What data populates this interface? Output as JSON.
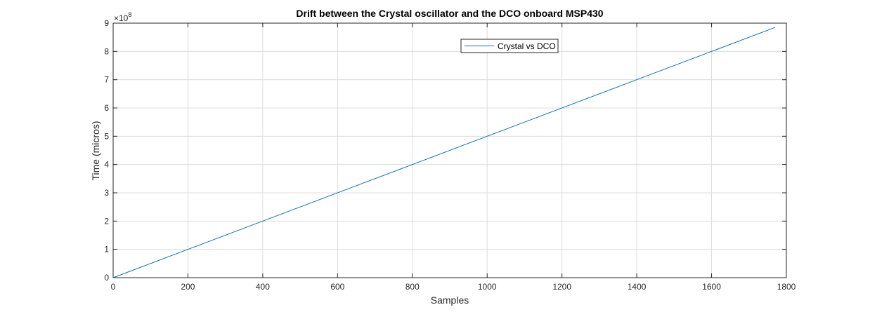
{
  "chart_data": {
    "type": "line",
    "title": "Drift between the Crystal oscillator and the DCO onboard MSP430",
    "xlabel": "Samples",
    "ylabel": "Time (micros)",
    "xlim": [
      0,
      1800
    ],
    "ylim": [
      0,
      9
    ],
    "y_multiplier_label": "×10",
    "y_multiplier_exponent": "8",
    "xticks": [
      0,
      200,
      400,
      600,
      800,
      1000,
      1200,
      1400,
      1600,
      1800
    ],
    "yticks": [
      0,
      1,
      2,
      3,
      4,
      5,
      6,
      7,
      8,
      9
    ],
    "grid": true,
    "legend_position": "top-right",
    "series": [
      {
        "name": "Crystal vs DCO",
        "color": "#0072BD",
        "x": [
          0,
          1770
        ],
        "y": [
          0,
          8.85
        ]
      }
    ]
  }
}
